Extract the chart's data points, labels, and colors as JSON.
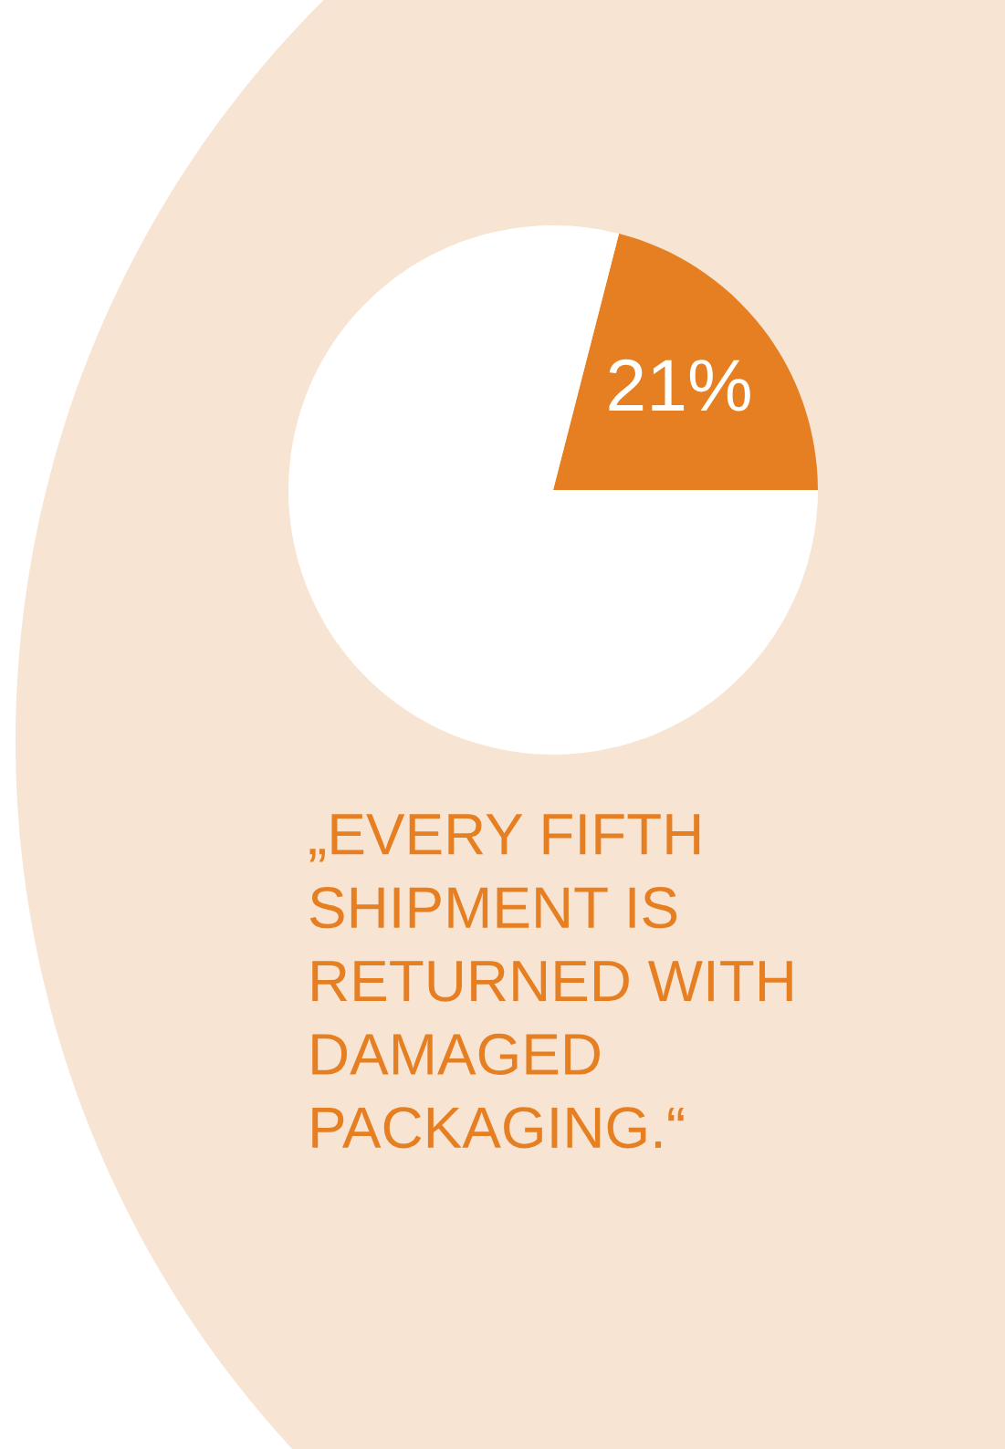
{
  "chart_data": {
    "type": "pie",
    "categories": [
      null,
      null
    ],
    "values": [
      21,
      79
    ],
    "colors": [
      "#e57f22",
      "#ffffff"
    ],
    "value_labels": [
      "21%",
      null
    ],
    "annotations": [
      "„EVERY FIFTH\nSHIPMENT IS\nRETURNED WITH\nDAMAGED\nPACKAGING.“"
    ]
  }
}
